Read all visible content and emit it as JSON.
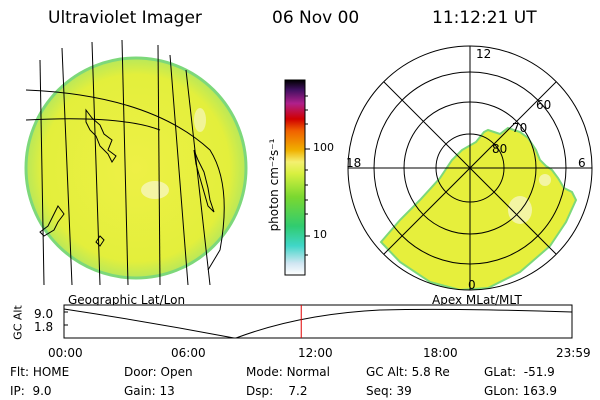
{
  "header": {
    "instrument": "Ultraviolet Imager",
    "date": "06 Nov 00",
    "time": "11:12:21 UT"
  },
  "colorbar": {
    "label": "photon cm⁻²s⁻¹",
    "ticks": [
      "100",
      "10"
    ]
  },
  "geo_panel": {
    "label": "Geographic Lat/Lon"
  },
  "polar_panel": {
    "label": "Apex MLat/MLT",
    "mlt_labels": {
      "top": "12",
      "left": "18",
      "right": "6",
      "bottom": "0"
    },
    "mlat_labels": [
      "60",
      "70",
      "80"
    ]
  },
  "timeline": {
    "ylabel": "GC Alt",
    "yticks": [
      "9.0",
      "1.8"
    ],
    "xticks": [
      "00:00",
      "06:00",
      "12:00",
      "18:00",
      "23:59"
    ],
    "current_time_fraction": 0.467
  },
  "status": {
    "flt_label": "Flt:",
    "flt_value": "HOME",
    "ip_label": "IP:",
    "ip_value": "9.0",
    "door_label": "Door:",
    "door_value": "Open",
    "gain_label": "Gain:",
    "gain_value": "13",
    "mode_label": "Mode:",
    "mode_value": "Normal",
    "dsp_label": "Dsp:",
    "dsp_value": "7.2",
    "gcalt_label": "GC Alt:",
    "gcalt_value": "5.8 Re",
    "seq_label": "Seq:",
    "seq_value": "39",
    "glat_label": "GLat:",
    "glat_value": "-51.9",
    "glon_label": "GLon:",
    "glon_value": "163.9"
  },
  "colors": {
    "image_fill": "#e8f040",
    "image_edge": "#7dd87a",
    "current_time_marker": "#e00000"
  }
}
